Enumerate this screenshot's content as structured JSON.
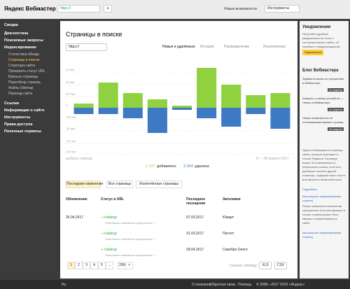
{
  "header": {
    "logo": "Яндекс Вебмастер",
    "site": "https://",
    "add": "+",
    "news": "Новые возможности",
    "tools": "Инструменты"
  },
  "sidebar": {
    "top": [
      "Сводка",
      "Диагностика",
      "Поисковые запросы",
      "Индексирование"
    ],
    "sub": [
      "Статистика обхода",
      "Страницы в поиске",
      "Структура сайта",
      "Проверить статус URL",
      "Важные страницы",
      "Переобход страниц",
      "Файлы Sitemap",
      "Переезд сайта"
    ],
    "active": 1,
    "bottom": [
      "Ссылки",
      "Информация о сайте",
      "Инструменты",
      "Права доступа",
      "Полезные сервисы"
    ]
  },
  "main": {
    "title": "Страницы в поиске",
    "site": "https://",
    "tabs": [
      "Новые и удалённые",
      "История",
      "Распределение",
      "Исключённые"
    ],
    "period": "выбрать период",
    "range": "5 — 28 апреля 2017",
    "added": "2 137",
    "added_label": "добавлено",
    "removed": "3 343",
    "removed_label": "удалено",
    "tabs2": [
      "Последние изменения",
      "Все страницы",
      "Исключённые страницы"
    ],
    "columns": [
      "Обновление",
      "Статус и URL",
      "Последнее посещение",
      "Заголовок"
    ],
    "rows": [
      [
        "26.04.2017",
        "– /catalog/",
        "Небольшое изменение содержимого ···",
        "07.03.2017",
        "Юмарт"
      ],
      [
        null,
        "– /catalog/",
        "Небольшое изменение содержимого ···",
        "31.03.2017",
        "Пентот"
      ],
      [
        null,
        "+ /catalog/",
        "Небольшое изменение содержимого ···",
        "18.04.2017",
        "Серебро Онего"
      ]
    ],
    "pages": [
      "1",
      "2",
      "3",
      "4",
      "5",
      "...",
      "2500",
      ">"
    ],
    "download": "Скачать таблицу:",
    "formats": [
      "XLS",
      "CSV"
    ]
  },
  "chart_data": {
    "type": "bar",
    "ylim": [
      -22,
      20
    ],
    "yticks": [
      {
        "value": 17,
        "label": "17 тыс."
      },
      {
        "value": 11,
        "label": "11 тыс."
      },
      {
        "value": 5.5,
        "label": "5,5 тыс."
      },
      0,
      {
        "value": -5.5,
        "label": "-5,5 тыс."
      },
      {
        "value": -11,
        "label": "-11 тыс."
      },
      {
        "value": -17,
        "label": "-17 тыс."
      },
      {
        "value": -22,
        "label": "-22 тыс."
      }
    ],
    "grid": true,
    "series": [
      {
        "name": "добавлено",
        "color": "#8fd13f",
        "values": [
          2,
          12,
          7,
          4,
          1,
          19,
          11,
          6,
          7
        ]
      },
      {
        "name": "удалено",
        "color": "#3e7ac4",
        "values": [
          -3,
          -3,
          -5,
          -12,
          -1,
          -5,
          -9,
          -3,
          -10
        ]
      }
    ]
  },
  "right": {
    "title": "Уведомления",
    "text": "Получайте удобные уведомления по почте о состоянии вашего сайта, об ошибках и предупреждениях.",
    "button": "Подписаться",
    "blog": "Блог Вебмастера",
    "posts": [
      {
        "text": "Задаём вопросы по улучшению в Вебмастере",
        "date": "21 апреля"
      },
      {
        "text": "Запросы с разных устройств — теперь в Вебмастере",
        "date": "21 апреля"
      },
      {
        "text": "Новые возможности по отслеживанию важных страниц",
        "date": "19 апреля"
      }
    ],
    "info": "Здесь отображаются страницы сайта, которые участвуют в поиске Яндекса. Страница может не показываться в результатах поиска, если она дублирует контент другой страницы, содержит мало текста или является неканонической.",
    "info_link": "Подробнее",
    "link2": "Как ускорить индексирование страниц",
    "info2": "Резкое изменение количества загруженных или участвующих в поиске страниц может быть связано с изменениями на сайте.",
    "link3": "Как ускорить индексирование страниц"
  },
  "footer": {
    "lang": "Ru",
    "links": [
      "О компании",
      "Обратная связь",
      "Помощь"
    ],
    "copyright": "© 2008—2017 ООО «Яндекс»"
  }
}
